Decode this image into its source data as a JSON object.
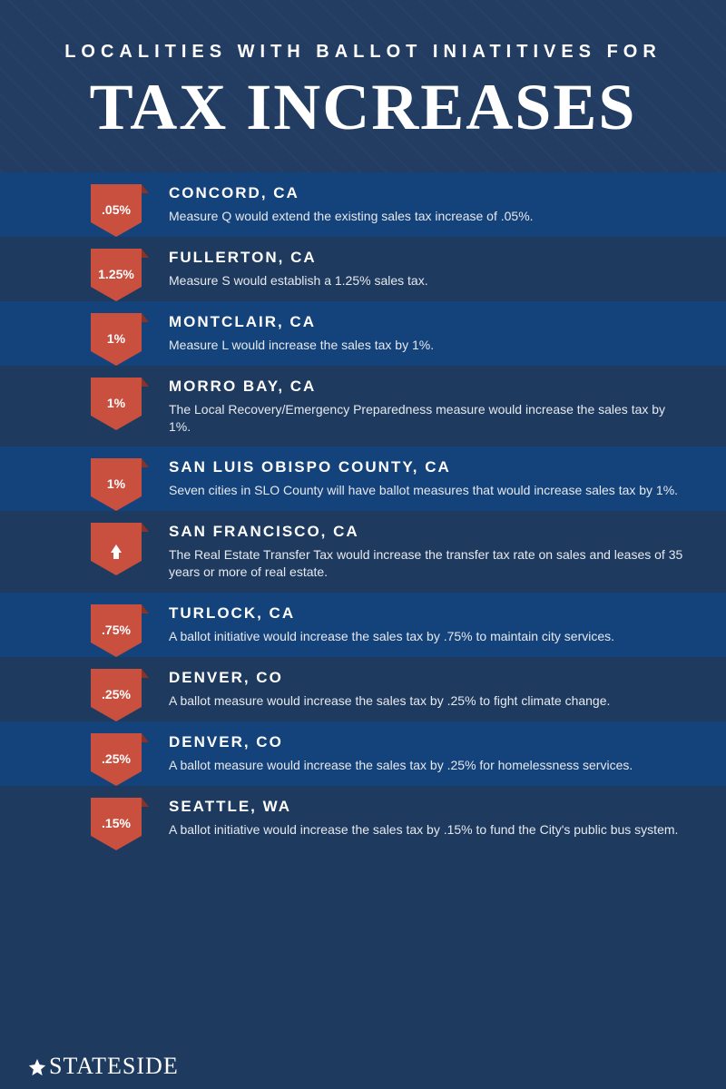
{
  "header": {
    "subtitle": "LOCALITIES WITH BALLOT INIATITIVES FOR",
    "title": "TAX INCREASES"
  },
  "colors": {
    "row_alt": "#14427a",
    "row_base": "#1e3a5f",
    "badge": "#c94f3f",
    "badge_fold": "#8a3326",
    "text": "#ffffff"
  },
  "items": [
    {
      "badge": ".05%",
      "arrow": false,
      "locality": "CONCORD, CA",
      "desc": "Measure Q would extend the existing sales tax increase of .05%."
    },
    {
      "badge": "1.25%",
      "arrow": false,
      "locality": "FULLERTON, CA",
      "desc": "Measure S would establish a 1.25% sales tax."
    },
    {
      "badge": "1%",
      "arrow": false,
      "locality": "MONTCLAIR, CA",
      "desc": "Measure L would increase the sales tax by 1%."
    },
    {
      "badge": "1%",
      "arrow": false,
      "locality": "MORRO BAY, CA",
      "desc": "The Local Recovery/Emergency Preparedness measure would increase the sales tax by 1%."
    },
    {
      "badge": "1%",
      "arrow": false,
      "locality": "SAN LUIS OBISPO COUNTY, CA",
      "desc": "Seven cities in SLO County will have ballot measures that would increase sales tax by 1%."
    },
    {
      "badge": "",
      "arrow": true,
      "locality": "SAN FRANCISCO, CA",
      "desc": "The Real Estate Transfer Tax would increase the transfer tax rate on sales and leases of 35 years or more of real estate."
    },
    {
      "badge": ".75%",
      "arrow": false,
      "locality": "TURLOCK, CA",
      "desc": "A ballot initiative would increase the sales tax by .75% to maintain city services."
    },
    {
      "badge": ".25%",
      "arrow": false,
      "locality": "DENVER, CO",
      "desc": "A ballot measure would increase the sales tax by .25% to fight climate change."
    },
    {
      "badge": ".25%",
      "arrow": false,
      "locality": "DENVER, CO",
      "desc": "A ballot measure would increase the sales tax by .25% for homelessness services."
    },
    {
      "badge": ".15%",
      "arrow": false,
      "locality": "SEATTLE, WA",
      "desc": "A ballot initiative would increase the sales tax by .15% to fund the City's public bus system."
    }
  ],
  "footer": {
    "brand": "STATESIDE"
  }
}
